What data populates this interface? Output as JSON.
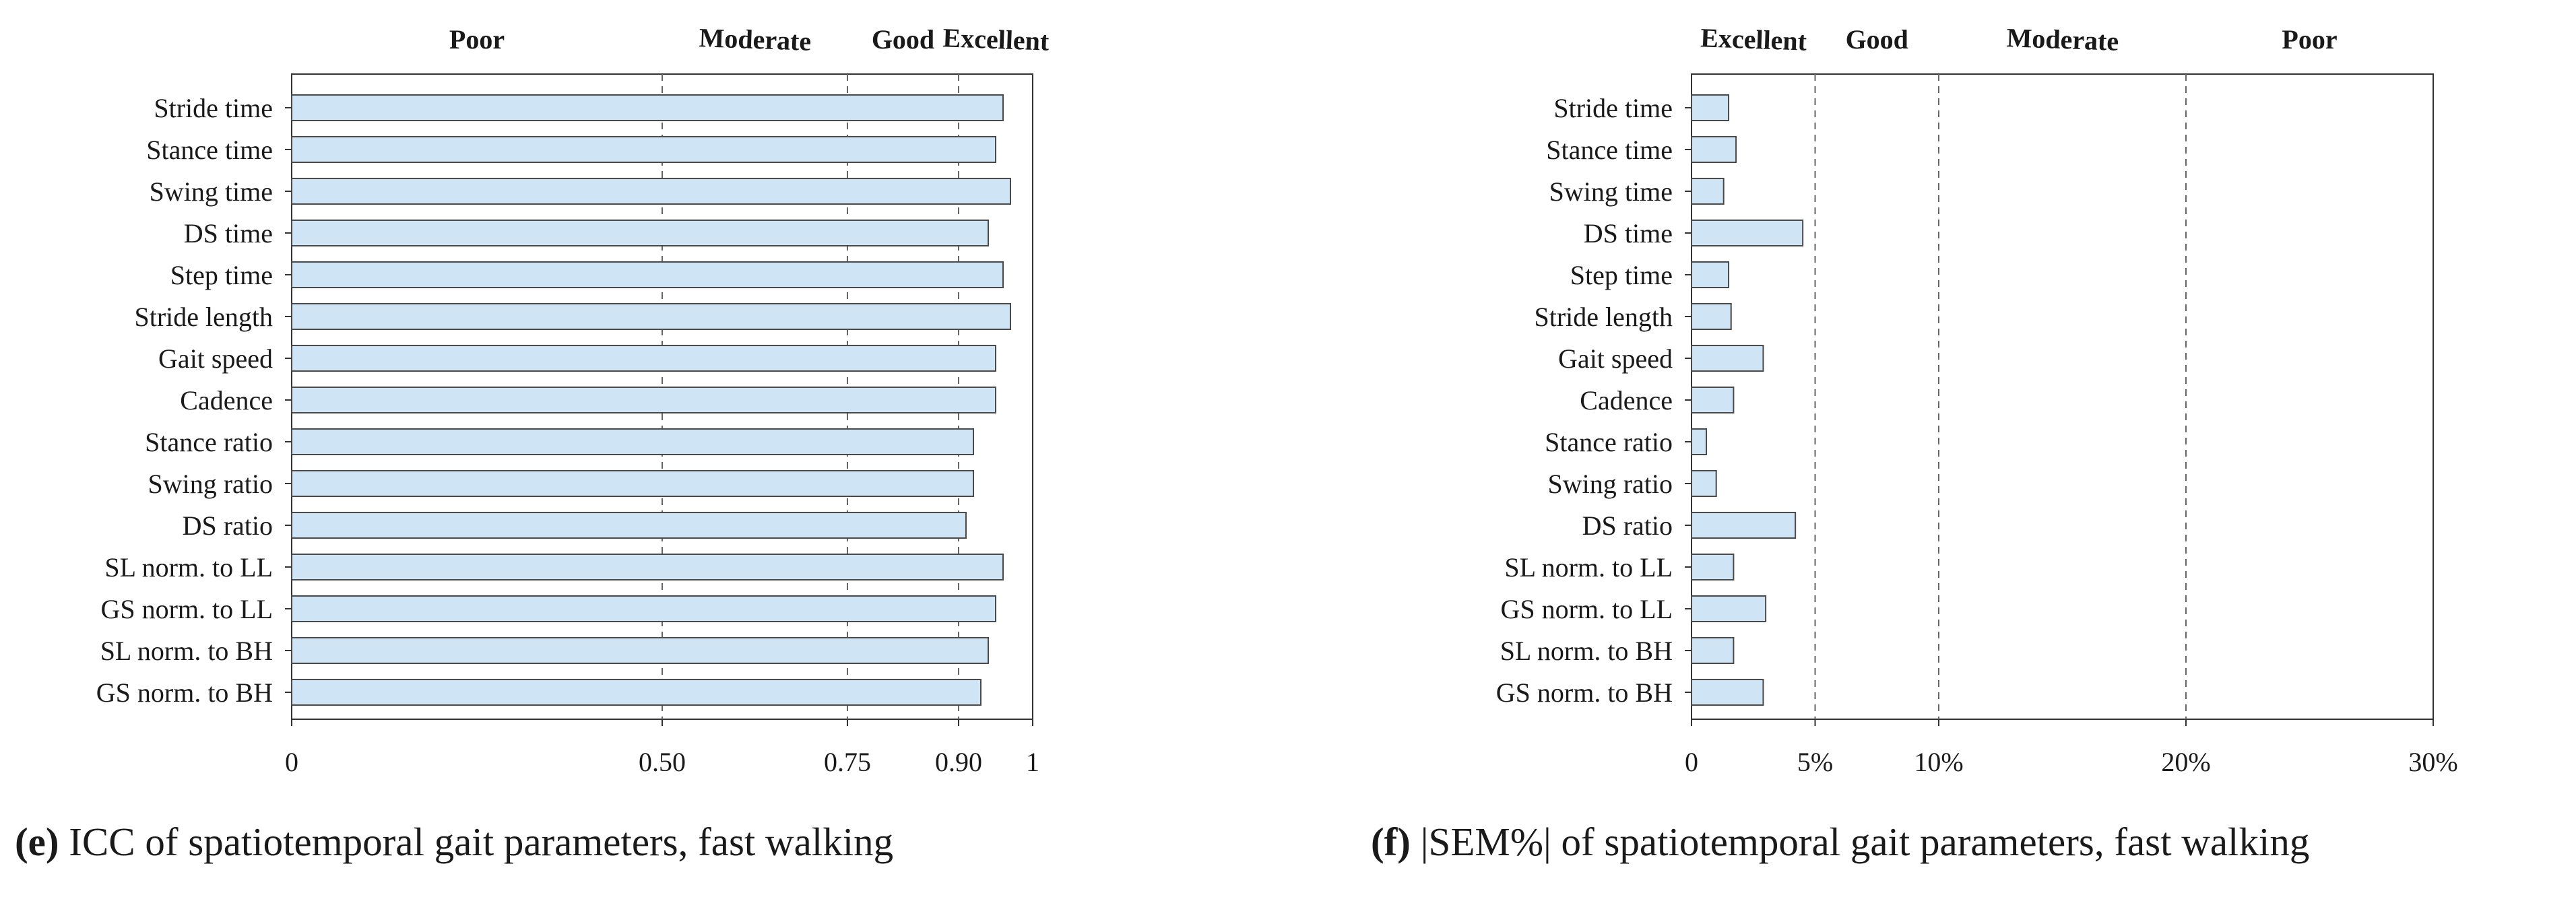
{
  "colors": {
    "bar_fill": "#cfe4f5",
    "bar_stroke": "#4a4a4a",
    "axis": "#333333",
    "threshold_line": "#666666"
  },
  "chart_data": [
    {
      "type": "bar",
      "orientation": "horizontal",
      "categories": [
        "Stride time",
        "Stance time",
        "Swing time",
        "DS time",
        "Step time",
        "Stride length",
        "Gait speed",
        "Cadence",
        "Stance ratio",
        "Swing ratio",
        "DS ratio",
        "SL norm. to LL",
        "GS norm. to LL",
        "SL norm. to BH",
        "GS norm. to BH"
      ],
      "values": [
        0.96,
        0.95,
        0.97,
        0.94,
        0.96,
        0.97,
        0.95,
        0.95,
        0.92,
        0.92,
        0.91,
        0.96,
        0.95,
        0.94,
        0.93
      ],
      "xlim": [
        0,
        1
      ],
      "xticks": [
        "0",
        "0.50",
        "0.75",
        "0.90",
        "1"
      ],
      "xtick_values": [
        0,
        0.5,
        0.75,
        0.9,
        1
      ],
      "thresholds": [
        0.5,
        0.75,
        0.9
      ],
      "zones": [
        {
          "label": "Poor",
          "from": 0,
          "to": 0.5
        },
        {
          "label": "Moderate",
          "from": 0.5,
          "to": 0.75
        },
        {
          "label": "Good",
          "from": 0.75,
          "to": 0.9
        },
        {
          "label": "Excellent",
          "from": 0.9,
          "to": 1
        }
      ],
      "caption_letter": "(e)",
      "caption_text": " ICC of spatiotemporal gait parameters, fast walking"
    },
    {
      "type": "bar",
      "orientation": "horizontal",
      "categories": [
        "Stride time",
        "Stance time",
        "Swing time",
        "DS time",
        "Step time",
        "Stride length",
        "Gait speed",
        "Cadence",
        "Stance ratio",
        "Swing ratio",
        "DS ratio",
        "SL norm. to LL",
        "GS norm. to LL",
        "SL norm. to BH",
        "GS norm. to BH"
      ],
      "values": [
        1.5,
        1.8,
        1.3,
        4.5,
        1.5,
        1.6,
        2.9,
        1.7,
        0.6,
        1.0,
        4.2,
        1.7,
        3.0,
        1.7,
        2.9
      ],
      "unit": "%",
      "xlim": [
        0,
        30
      ],
      "xticks": [
        "0",
        "5%",
        "10%",
        "20%",
        "30%"
      ],
      "xtick_values": [
        0,
        5,
        10,
        20,
        30
      ],
      "thresholds": [
        5,
        10,
        20
      ],
      "zones": [
        {
          "label": "Excellent",
          "from": 0,
          "to": 5
        },
        {
          "label": "Good",
          "from": 5,
          "to": 10
        },
        {
          "label": "Moderate",
          "from": 10,
          "to": 20
        },
        {
          "label": "Poor",
          "from": 20,
          "to": 30
        }
      ],
      "caption_letter": "(f)",
      "caption_text": " |SEM%| of spatiotemporal gait parameters, fast walking"
    }
  ]
}
